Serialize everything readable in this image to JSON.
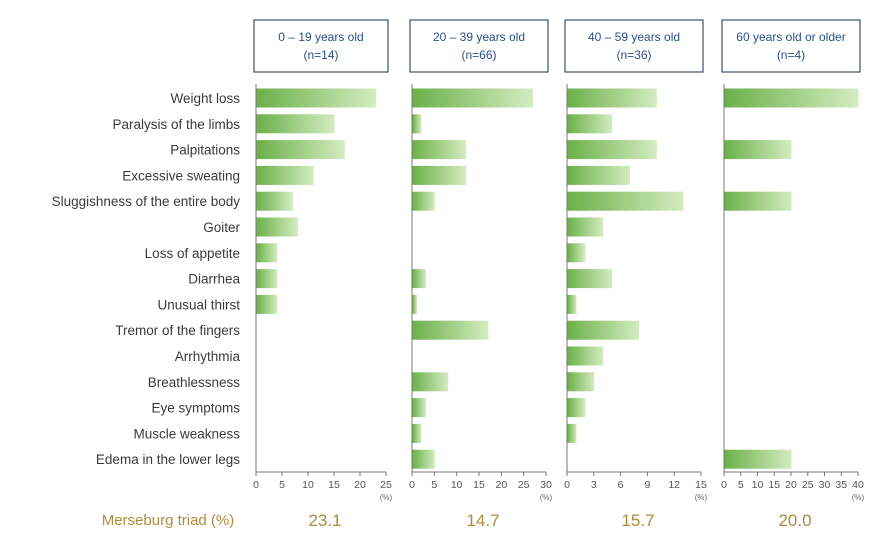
{
  "chart_data": {
    "type": "bar",
    "orientation": "horizontal",
    "categories": [
      "Weight loss",
      "Paralysis of the limbs",
      "Palpitations",
      "Excessive sweating",
      "Sluggishness of the entire body",
      "Goiter",
      "Loss of appetite",
      "Diarrhea",
      "Unusual thirst",
      "Tremor of the fingers",
      "Arrhythmia",
      "Breathlessness",
      "Eye symptoms",
      "Muscle weakness",
      "Edema in the lower legs"
    ],
    "unit": "(%)",
    "colors": {
      "bar_dark": "#6bb04a",
      "bar_light": "#d4ecc0",
      "header_border": "#3f4f6f",
      "header_text": "#2a4f8a",
      "triad_text": "#b08a3c"
    },
    "panels": [
      {
        "header_line1": "0 – 19 years old",
        "header_line2": "(n=14)",
        "xlim": [
          0,
          25
        ],
        "ticks": [
          0,
          5,
          10,
          15,
          20,
          25
        ],
        "values": [
          23,
          15,
          17,
          11,
          7,
          8,
          4,
          4,
          4,
          0,
          0,
          0,
          0,
          0,
          0
        ],
        "triad": "23.1"
      },
      {
        "header_line1": "20 – 39 years old",
        "header_line2": "(n=66)",
        "xlim": [
          0,
          30
        ],
        "ticks": [
          0,
          5,
          10,
          15,
          20,
          25,
          30
        ],
        "values": [
          27,
          2,
          12,
          12,
          5,
          0,
          0,
          3,
          1,
          17,
          0,
          8,
          3,
          2,
          5
        ],
        "triad": "14.7"
      },
      {
        "header_line1": "40 – 59 years old",
        "header_line2": "(n=36)",
        "xlim": [
          0,
          15
        ],
        "ticks": [
          0,
          3,
          6,
          9,
          12,
          15
        ],
        "values": [
          10,
          5,
          10,
          7,
          13,
          4,
          2,
          5,
          1,
          8,
          4,
          3,
          2,
          1,
          0
        ],
        "triad": "15.7"
      },
      {
        "header_line1": "60 years old or older",
        "header_line2": "(n=4)",
        "xlim": [
          0,
          40
        ],
        "ticks": [
          0,
          5,
          10,
          15,
          20,
          25,
          30,
          35,
          40
        ],
        "values": [
          40,
          0,
          20,
          0,
          20,
          0,
          0,
          0,
          0,
          0,
          0,
          0,
          0,
          0,
          20
        ],
        "triad": "20.0"
      }
    ],
    "triad_label": "Merseburg triad (%)"
  }
}
